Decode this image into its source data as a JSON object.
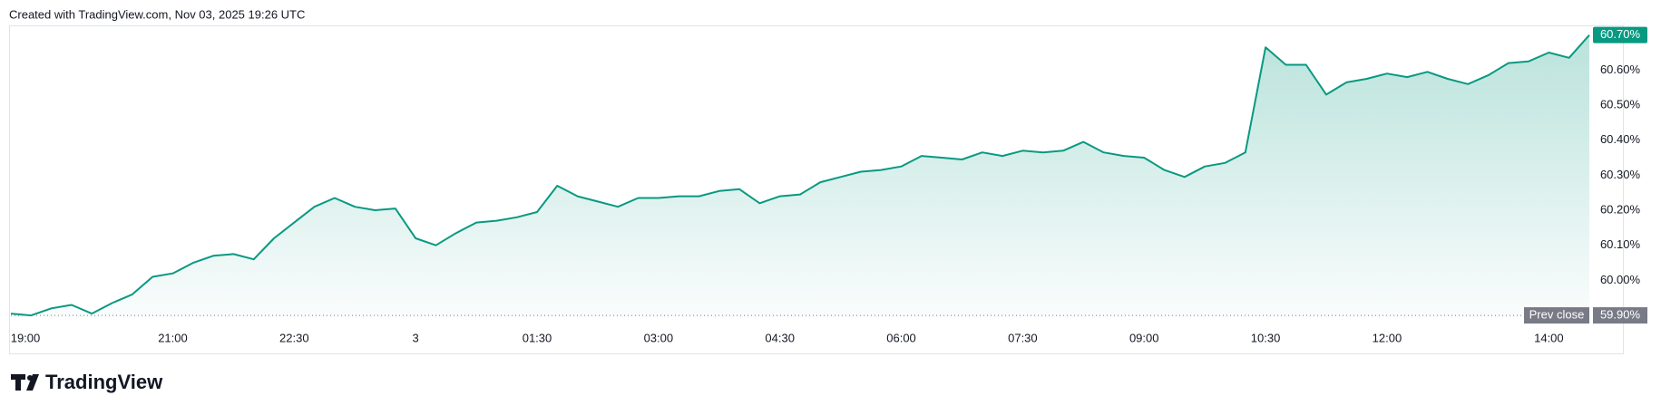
{
  "header": {
    "text": "Created with TradingView.com, Nov 03, 2025 19:26 UTC"
  },
  "chart_data": {
    "type": "area",
    "categories": [
      "19:00",
      null,
      null,
      null,
      null,
      null,
      null,
      null,
      "21:00",
      null,
      null,
      null,
      null,
      null,
      "22:30",
      null,
      null,
      null,
      null,
      null,
      "3",
      null,
      null,
      null,
      null,
      null,
      "01:30",
      null,
      null,
      null,
      null,
      null,
      "03:00",
      null,
      null,
      null,
      null,
      null,
      "04:30",
      null,
      null,
      null,
      null,
      null,
      "06:00",
      null,
      null,
      null,
      null,
      null,
      "07:30",
      null,
      null,
      null,
      null,
      null,
      "09:00",
      null,
      null,
      null,
      null,
      null,
      "10:30",
      null,
      null,
      null,
      null,
      null,
      "12:00",
      null,
      null,
      null,
      null,
      null,
      null,
      null,
      "14:00",
      null,
      null
    ],
    "values": [
      59.905,
      59.9,
      59.92,
      59.93,
      59.905,
      59.935,
      59.96,
      60.01,
      60.02,
      60.05,
      60.07,
      60.075,
      60.06,
      60.12,
      60.165,
      60.21,
      60.235,
      60.21,
      60.2,
      60.205,
      60.12,
      60.1,
      60.135,
      60.165,
      60.17,
      60.18,
      60.195,
      60.27,
      60.24,
      60.225,
      60.21,
      60.235,
      60.235,
      60.24,
      60.24,
      60.255,
      60.26,
      60.22,
      60.24,
      60.245,
      60.28,
      60.295,
      60.31,
      60.315,
      60.325,
      60.355,
      60.35,
      60.345,
      60.365,
      60.355,
      60.37,
      60.365,
      60.37,
      60.395,
      60.365,
      60.355,
      60.35,
      60.315,
      60.295,
      60.325,
      60.335,
      60.365,
      60.665,
      60.615,
      60.615,
      60.53,
      60.565,
      60.575,
      60.59,
      60.58,
      60.595,
      60.575,
      60.56,
      60.585,
      60.62,
      60.625,
      60.65,
      60.635,
      60.7
    ],
    "color": "#089981",
    "ylim": [
      59.895,
      60.725
    ],
    "yticks": [
      {
        "value": 60.0,
        "label": "60.00%"
      },
      {
        "value": 60.1,
        "label": "60.10%"
      },
      {
        "value": 60.2,
        "label": "60.20%"
      },
      {
        "value": 60.3,
        "label": "60.30%"
      },
      {
        "value": 60.4,
        "label": "60.40%"
      },
      {
        "value": 60.5,
        "label": "60.50%"
      },
      {
        "value": 60.6,
        "label": "60.60%"
      }
    ],
    "last_value": {
      "value": 60.7,
      "label": "60.70%"
    },
    "prev_close": {
      "label": "Prev close",
      "value": 59.9,
      "value_label": "59.90%"
    }
  },
  "footer": {
    "brand": "TradingView"
  }
}
